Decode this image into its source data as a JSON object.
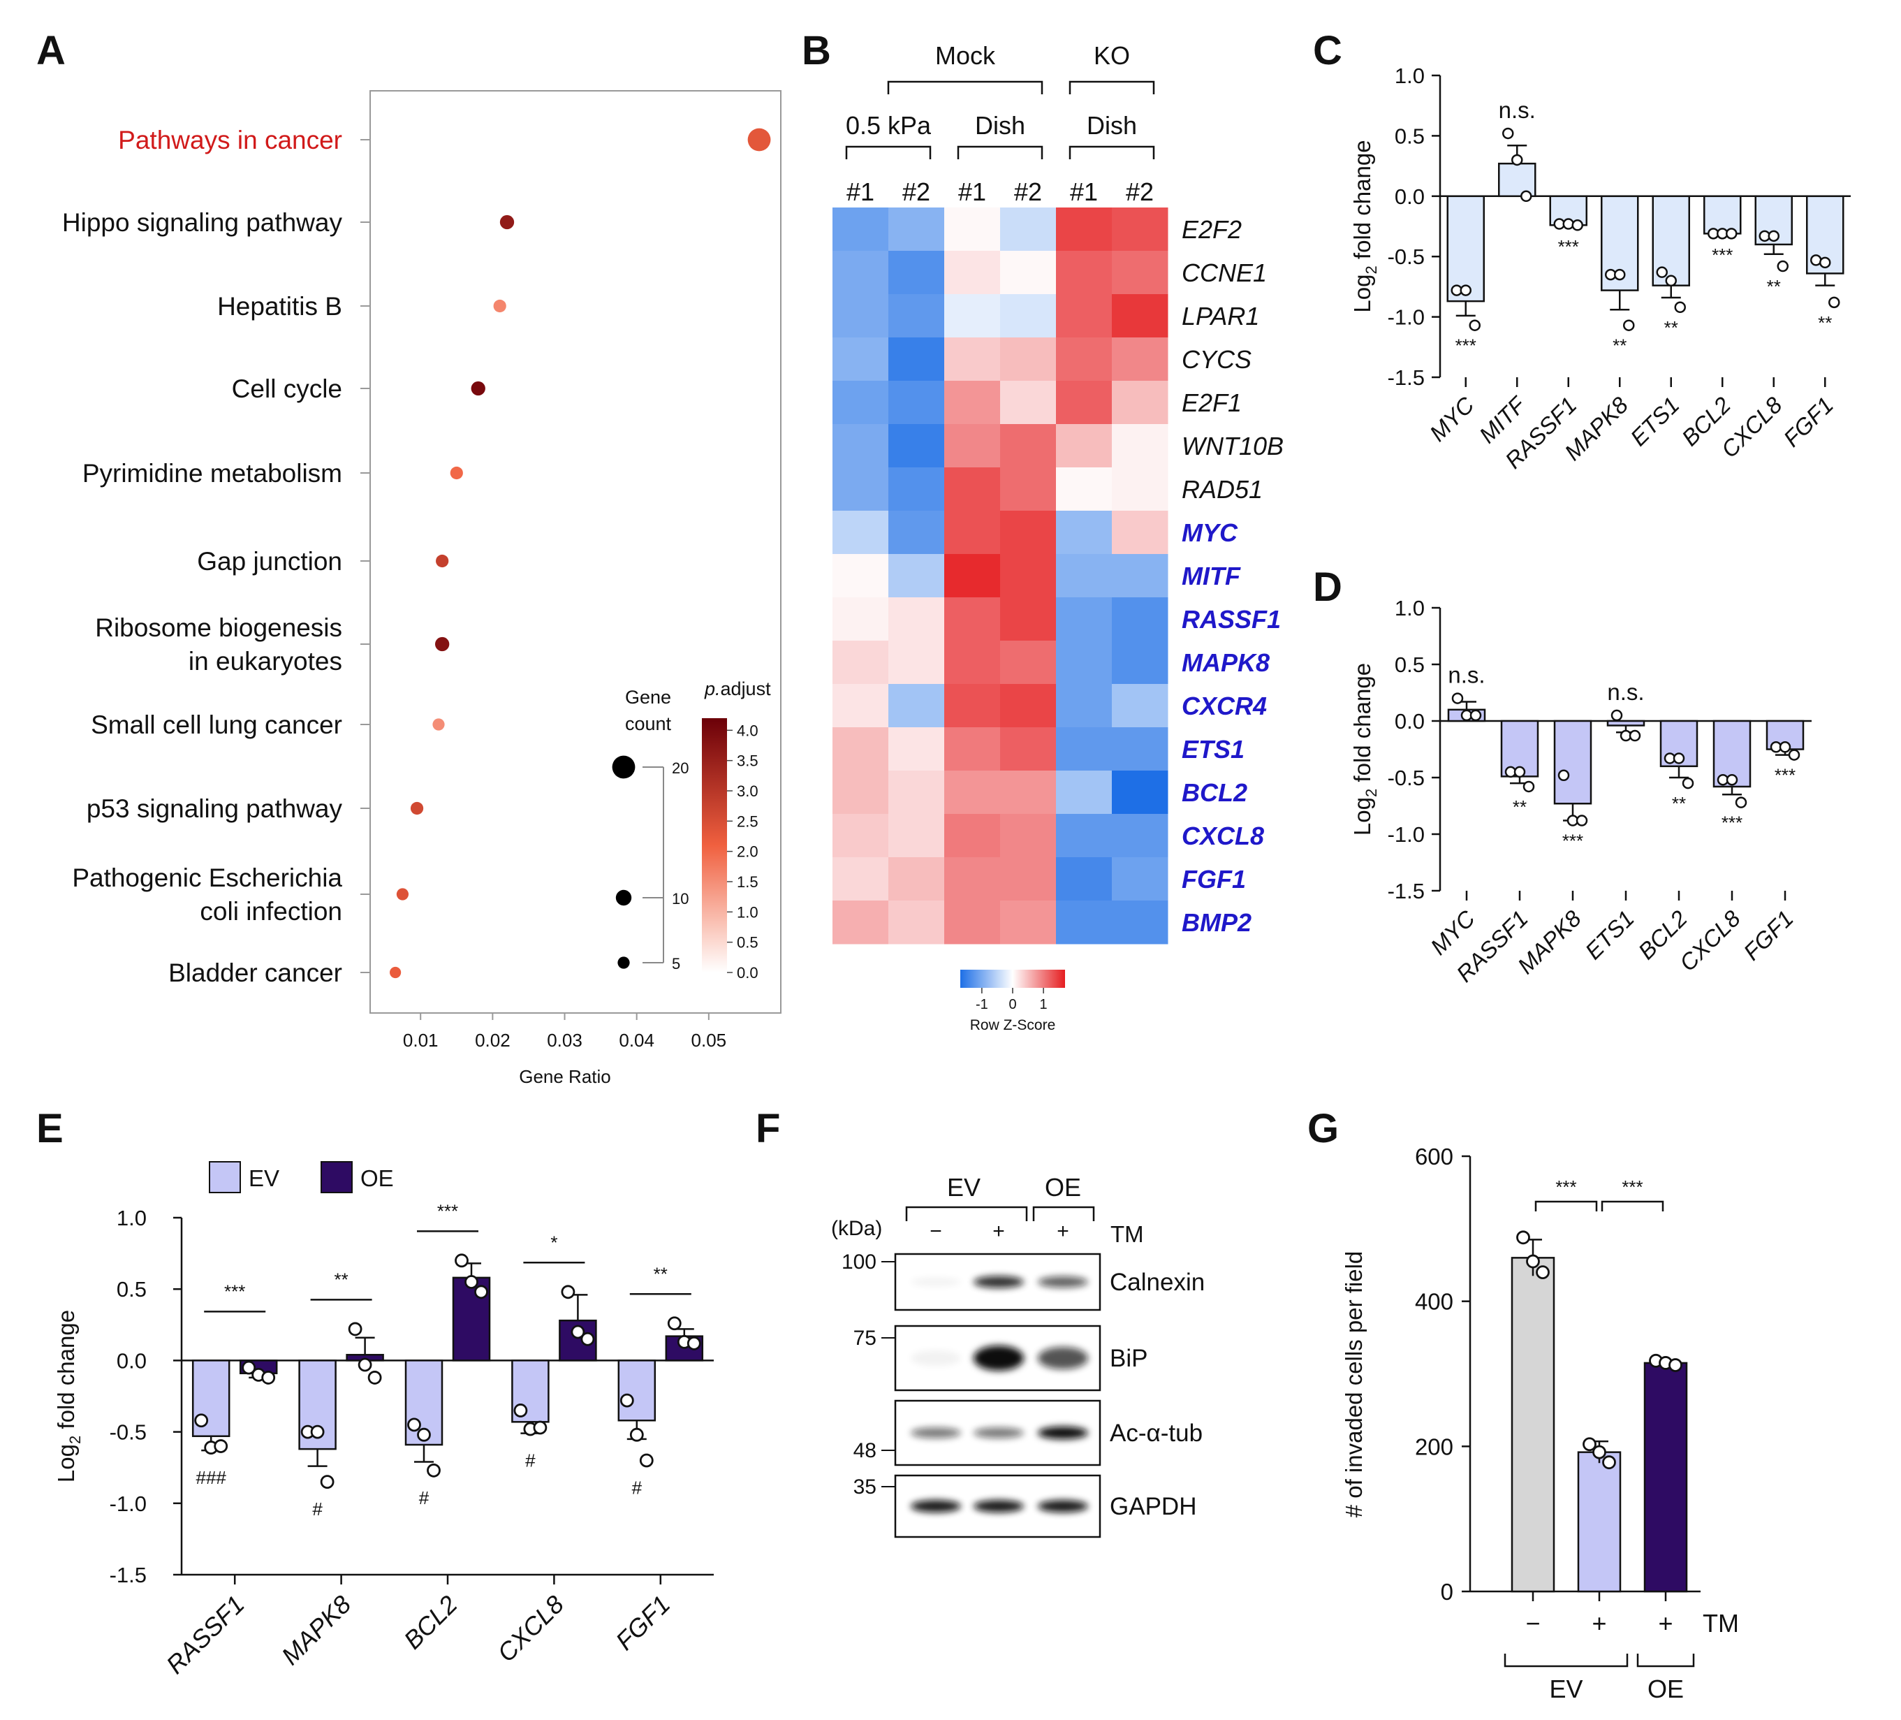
{
  "colors": {
    "ev_fill": "#c4c6f6",
    "oe_fill": "#2e0b63",
    "c_fill": "#dde9fb",
    "d_fill": "#c4c6f6",
    "g_ctrl_fill": "#d6d6d6",
    "red_text": "#d11a1a",
    "blue_text": "#1f18c9",
    "heat_low": "#1e6fe6",
    "heat_mid": "#ffffff",
    "heat_high": "#e51d20"
  },
  "chart_data": [
    {
      "panel": "A",
      "type": "scatter",
      "xlabel": "Gene Ratio",
      "xlim": [
        0.003,
        0.06
      ],
      "xticks": [
        "0.01",
        "0.02",
        "0.03",
        "0.04",
        "0.05"
      ],
      "xtick_values": [
        0.01,
        0.02,
        0.03,
        0.04,
        0.05
      ],
      "terms": [
        {
          "lines": [
            "Pathways in cancer"
          ],
          "ratio": 0.057,
          "count": 20,
          "padj": 2.3,
          "highlight": true
        },
        {
          "lines": [
            "Hippo signaling pathway"
          ],
          "ratio": 0.022,
          "count": 8,
          "padj": 3.6
        },
        {
          "lines": [
            "Hepatitis B"
          ],
          "ratio": 0.021,
          "count": 6,
          "padj": 1.6
        },
        {
          "lines": [
            "Cell cycle"
          ],
          "ratio": 0.018,
          "count": 8,
          "padj": 4.0
        },
        {
          "lines": [
            "Pyrimidine metabolism"
          ],
          "ratio": 0.015,
          "count": 6,
          "padj": 2.0
        },
        {
          "lines": [
            "Gap junction"
          ],
          "ratio": 0.013,
          "count": 6,
          "padj": 2.8
        },
        {
          "lines": [
            "Ribosome biogenesis",
            "in eukaryotes"
          ],
          "ratio": 0.013,
          "count": 8,
          "padj": 3.8
        },
        {
          "lines": [
            "Small cell lung cancer"
          ],
          "ratio": 0.0125,
          "count": 5,
          "padj": 1.5
        },
        {
          "lines": [
            "p53 signaling pathway"
          ],
          "ratio": 0.0095,
          "count": 6,
          "padj": 2.6
        },
        {
          "lines": [
            "Pathogenic Escherichia",
            "coli infection"
          ],
          "ratio": 0.0075,
          "count": 5,
          "padj": 2.4
        },
        {
          "lines": [
            "Bladder cancer"
          ],
          "ratio": 0.0065,
          "count": 4,
          "padj": 2.2
        }
      ],
      "size_legend": {
        "title": [
          "Gene",
          "count"
        ],
        "values": [
          20,
          10,
          5
        ]
      },
      "color_legend": {
        "title_italic": "p.",
        "title_rest": "adjust",
        "range": [
          0.0,
          4.2
        ],
        "ticks": [
          "4.0",
          "3.5",
          "3.0",
          "2.5",
          "2.0",
          "1.5",
          "1.0",
          "0.5",
          "0.0"
        ],
        "tick_values": [
          4.0,
          3.5,
          3.0,
          2.5,
          2.0,
          1.5,
          1.0,
          0.5,
          0.0
        ]
      }
    },
    {
      "panel": "B",
      "type": "heatmap",
      "group_top": [
        {
          "label": "Mock",
          "span": [
            0,
            4
          ]
        },
        {
          "label": "KO",
          "span": [
            4,
            6
          ]
        }
      ],
      "group_mid": [
        {
          "label": "0.5 kPa",
          "span": [
            0,
            2
          ]
        },
        {
          "label": "Dish",
          "span": [
            2,
            4
          ]
        },
        {
          "label": "Dish",
          "span": [
            4,
            6
          ]
        }
      ],
      "columns": [
        "#1",
        "#2",
        "#1",
        "#2",
        "#1",
        "#2"
      ],
      "rows": [
        {
          "gene": "E2F2",
          "values": [
            -1.1,
            -0.9,
            0.05,
            -0.4,
            1.4,
            1.3
          ],
          "bold": false
        },
        {
          "gene": "CCNE1",
          "values": [
            -1.0,
            -1.3,
            0.2,
            0.05,
            1.2,
            1.1
          ],
          "bold": false
        },
        {
          "gene": "LPAR1",
          "values": [
            -1.0,
            -1.2,
            -0.2,
            -0.3,
            1.2,
            1.5
          ],
          "bold": false
        },
        {
          "gene": "CYCS",
          "values": [
            -0.9,
            -1.5,
            0.4,
            0.5,
            1.1,
            0.9
          ],
          "bold": false
        },
        {
          "gene": "E2F1",
          "values": [
            -1.1,
            -1.3,
            0.8,
            0.3,
            1.2,
            0.5
          ],
          "bold": false
        },
        {
          "gene": "WNT10B",
          "values": [
            -1.0,
            -1.5,
            0.9,
            1.1,
            0.5,
            0.1
          ],
          "bold": false
        },
        {
          "gene": "RAD51",
          "values": [
            -1.0,
            -1.3,
            1.3,
            1.1,
            0.05,
            0.1
          ],
          "bold": false
        },
        {
          "gene": "MYC",
          "values": [
            -0.5,
            -1.2,
            1.3,
            1.4,
            -0.8,
            0.4
          ],
          "bold": true
        },
        {
          "gene": "MITF",
          "values": [
            0.05,
            -0.6,
            1.6,
            1.4,
            -0.9,
            -0.9
          ],
          "bold": true
        },
        {
          "gene": "RASSF1",
          "values": [
            0.1,
            0.2,
            1.2,
            1.4,
            -1.1,
            -1.3
          ],
          "bold": true
        },
        {
          "gene": "MAPK8",
          "values": [
            0.3,
            0.2,
            1.2,
            1.1,
            -1.1,
            -1.3
          ],
          "bold": true
        },
        {
          "gene": "CXCR4",
          "values": [
            0.2,
            -0.7,
            1.3,
            1.4,
            -1.1,
            -0.7
          ],
          "bold": true
        },
        {
          "gene": "ETS1",
          "values": [
            0.5,
            0.2,
            1.0,
            1.2,
            -1.2,
            -1.2
          ],
          "bold": true
        },
        {
          "gene": "BCL2",
          "values": [
            0.5,
            0.3,
            0.8,
            0.8,
            -0.7,
            -1.7
          ],
          "bold": true
        },
        {
          "gene": "CXCL8",
          "values": [
            0.4,
            0.3,
            1.0,
            0.9,
            -1.2,
            -1.2
          ],
          "bold": true
        },
        {
          "gene": "FGF1",
          "values": [
            0.3,
            0.5,
            0.9,
            0.9,
            -1.4,
            -1.1
          ],
          "bold": true
        },
        {
          "gene": "BMP2",
          "values": [
            0.6,
            0.4,
            0.9,
            0.8,
            -1.3,
            -1.3
          ],
          "bold": true
        }
      ],
      "scale": {
        "label": "Row Z-Score",
        "ticks": [
          "-1",
          "0",
          "1"
        ],
        "tick_values": [
          -1,
          0,
          1
        ],
        "range": [
          -1.7,
          1.7
        ]
      }
    },
    {
      "panel": "C",
      "type": "bar",
      "ylabel_main": "Log",
      "ylabel_sub": "2",
      "ylabel_rest": " fold change",
      "ylim": [
        -1.5,
        1.0
      ],
      "yticks": [
        "1.0",
        "0.5",
        "0.0",
        "-0.5",
        "-1.0",
        "-1.5"
      ],
      "ytick_values": [
        1.0,
        0.5,
        0.0,
        -0.5,
        -1.0,
        -1.5
      ],
      "categories": [
        "MYC",
        "MITF",
        "RASSF1",
        "MAPK8",
        "ETS1",
        "BCL2",
        "CXCL8",
        "FGF1"
      ],
      "values": [
        -0.87,
        0.27,
        -0.24,
        -0.78,
        -0.74,
        -0.31,
        -0.4,
        -0.64
      ],
      "errors": [
        0.12,
        0.15,
        0.01,
        0.16,
        0.1,
        0.01,
        0.08,
        0.1
      ],
      "points": [
        [
          -0.78,
          -0.78,
          -1.07
        ],
        [
          0.52,
          0.3,
          0.0
        ],
        [
          -0.23,
          -0.23,
          -0.24
        ],
        [
          -0.65,
          -0.65,
          -1.07
        ],
        [
          -0.63,
          -0.7,
          -0.92
        ],
        [
          -0.31,
          -0.31,
          -0.31
        ],
        [
          -0.33,
          -0.33,
          -0.58
        ],
        [
          -0.53,
          -0.55,
          -0.88
        ]
      ],
      "sig": [
        "***",
        "n.s.",
        "***",
        "**",
        "**",
        "***",
        "**",
        "**"
      ],
      "sig_pos": [
        "below",
        "above",
        "below",
        "below",
        "below",
        "below",
        "below",
        "below"
      ]
    },
    {
      "panel": "D",
      "type": "bar",
      "ylabel_main": "Log",
      "ylabel_sub": "2",
      "ylabel_rest": " fold change",
      "ylim": [
        -1.5,
        1.0
      ],
      "yticks": [
        "1.0",
        "0.5",
        "0.0",
        "-0.5",
        "-1.0",
        "-1.5"
      ],
      "ytick_values": [
        1.0,
        0.5,
        0.0,
        -0.5,
        -1.0,
        -1.5
      ],
      "categories": [
        "MYC",
        "RASSF1",
        "MAPK8",
        "ETS1",
        "BCL2",
        "CXCL8",
        "FGF1"
      ],
      "values": [
        0.1,
        -0.49,
        -0.73,
        -0.04,
        -0.4,
        -0.58,
        -0.25
      ],
      "errors": [
        0.07,
        0.06,
        0.15,
        0.06,
        0.1,
        0.07,
        0.05
      ],
      "points": [
        [
          0.2,
          0.05,
          0.05
        ],
        [
          -0.45,
          -0.45,
          -0.58
        ],
        [
          -0.48,
          -0.88,
          -0.88
        ],
        [
          0.05,
          -0.13,
          -0.13
        ],
        [
          -0.33,
          -0.33,
          -0.55
        ],
        [
          -0.52,
          -0.52,
          -0.72
        ],
        [
          -0.23,
          -0.23,
          -0.3
        ]
      ],
      "sig": [
        "n.s.",
        "**",
        "***",
        "n.s.",
        "**",
        "***",
        "***"
      ],
      "sig_pos": [
        "above",
        "below",
        "below",
        "above",
        "below",
        "below",
        "below"
      ]
    },
    {
      "panel": "E",
      "type": "bar",
      "ylabel_main": "Log",
      "ylabel_sub": "2",
      "ylabel_rest": " fold change",
      "ylim": [
        -1.5,
        1.0
      ],
      "yticks": [
        "1.0",
        "0.5",
        "0.0",
        "-0.5",
        "-1.0",
        "-1.5"
      ],
      "ytick_values": [
        1.0,
        0.5,
        0.0,
        -0.5,
        -1.0,
        -1.5
      ],
      "categories": [
        "RASSF1",
        "MAPK8",
        "BCL2",
        "CXCL8",
        "FGF1"
      ],
      "legend": [
        "EV",
        "OE"
      ],
      "series": [
        {
          "name": "EV",
          "values": [
            -0.53,
            -0.62,
            -0.59,
            -0.43,
            -0.42
          ],
          "errors": [
            0.1,
            0.12,
            0.12,
            0.08,
            0.13
          ],
          "points": [
            [
              -0.42,
              -0.61,
              -0.6
            ],
            [
              -0.5,
              -0.5,
              -0.85
            ],
            [
              -0.45,
              -0.52,
              -0.77
            ],
            [
              -0.35,
              -0.48,
              -0.47
            ],
            [
              -0.28,
              -0.52,
              -0.7
            ]
          ],
          "marks": [
            "###",
            "#",
            "#",
            "#",
            "#"
          ]
        },
        {
          "name": "OE",
          "values": [
            -0.09,
            0.04,
            0.58,
            0.28,
            0.17
          ],
          "errors": [
            0.03,
            0.12,
            0.1,
            0.18,
            0.05
          ],
          "points": [
            [
              -0.05,
              -0.1,
              -0.12
            ],
            [
              0.22,
              -0.03,
              -0.12
            ],
            [
              0.7,
              0.55,
              0.48
            ],
            [
              0.48,
              0.2,
              0.15
            ],
            [
              0.26,
              0.13,
              0.12
            ]
          ]
        }
      ],
      "sig": [
        "***",
        "**",
        "***",
        "*",
        "**"
      ]
    },
    {
      "panel": "G",
      "type": "bar",
      "ylabel": "# of invaded cells per field",
      "ylim": [
        0,
        600
      ],
      "yticks": [
        "600",
        "400",
        "200",
        "0"
      ],
      "ytick_values": [
        600,
        400,
        200,
        0
      ],
      "tm": [
        "−",
        "+",
        "+"
      ],
      "tm_label": "TM",
      "groups": [
        {
          "label": "EV",
          "span": [
            0,
            2
          ]
        },
        {
          "label": "OE",
          "span": [
            2,
            3
          ]
        }
      ],
      "values": [
        460,
        192,
        315
      ],
      "errors": [
        25,
        15,
        3
      ],
      "points": [
        [
          488,
          455,
          440
        ],
        [
          203,
          192,
          178
        ],
        [
          318,
          315,
          312
        ]
      ],
      "sig": [
        "***",
        "***"
      ]
    }
  ],
  "panel_labels": {
    "A": "A",
    "B": "B",
    "C": "C",
    "D": "D",
    "E": "E",
    "F": "F",
    "G": "G"
  },
  "blot": {
    "group_ev": "EV",
    "group_oe": "OE",
    "kda_label": "(kDa)",
    "tm": [
      "−",
      "+",
      "+"
    ],
    "tm_label": "TM",
    "markers": [
      "100",
      "75",
      "48",
      "35"
    ],
    "bands": [
      {
        "name": "Calnexin",
        "intensity": [
          0.05,
          0.85,
          0.65
        ]
      },
      {
        "name": "BiP",
        "intensity": [
          0.05,
          1.0,
          0.7
        ]
      },
      {
        "name": "Ac-α-tub",
        "intensity": [
          0.55,
          0.55,
          1.0
        ]
      },
      {
        "name": "GAPDH",
        "intensity": [
          0.95,
          0.95,
          0.95
        ]
      }
    ]
  }
}
